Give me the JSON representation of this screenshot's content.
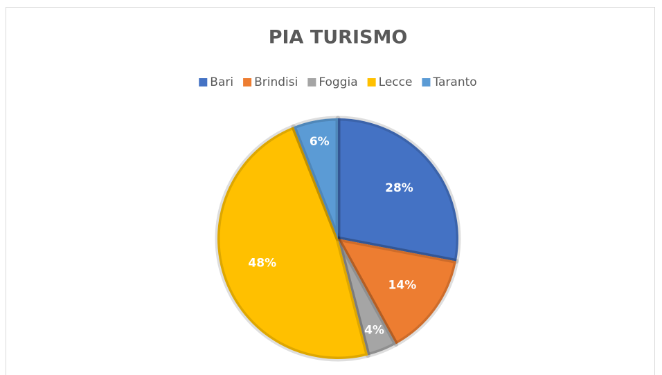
{
  "chart_data": {
    "type": "pie",
    "title": "PIA TURISMO",
    "categories": [
      "Bari",
      "Brindisi",
      "Foggia",
      "Lecce",
      "Taranto"
    ],
    "values": [
      28,
      14,
      4,
      48,
      6
    ],
    "value_labels": [
      "28%",
      "14%",
      "4%",
      "48%",
      "6%"
    ],
    "colors": [
      "#4472c4",
      "#ed7d31",
      "#a5a5a5",
      "#ffc000",
      "#5b9bd5"
    ],
    "legend": "top"
  }
}
